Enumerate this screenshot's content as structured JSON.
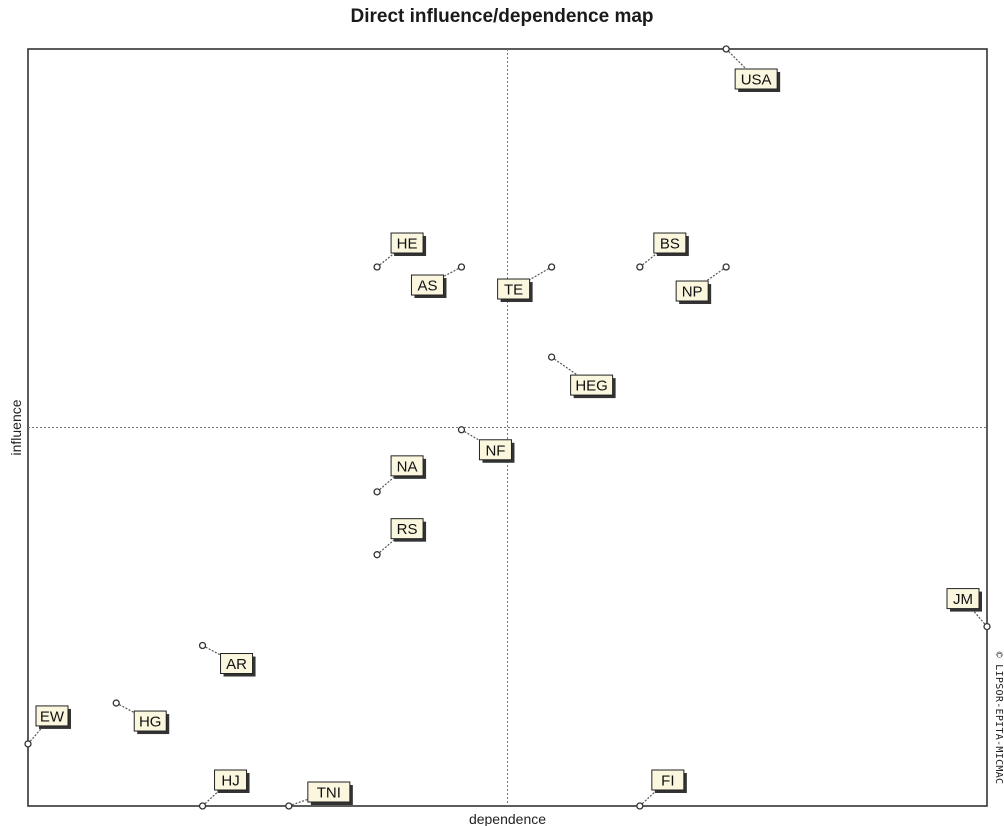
{
  "chart_data": {
    "type": "scatter",
    "title": "Direct influence/dependence map",
    "xlabel": "dependence",
    "ylabel": "influence",
    "copyright": "© LIPSOR-EPITA-MICMAC",
    "grid": false,
    "reference_lines": {
      "x": 0.5,
      "y": 0.5
    },
    "points": [
      {
        "label": "USA",
        "x": 0.728,
        "y": 1.0
      },
      {
        "label": "HE",
        "x": 0.364,
        "y": 0.712
      },
      {
        "label": "AS",
        "x": 0.452,
        "y": 0.712
      },
      {
        "label": "TE",
        "x": 0.546,
        "y": 0.712
      },
      {
        "label": "BS",
        "x": 0.638,
        "y": 0.712
      },
      {
        "label": "NP",
        "x": 0.728,
        "y": 0.712
      },
      {
        "label": "HEG",
        "x": 0.546,
        "y": 0.593
      },
      {
        "label": "NF",
        "x": 0.452,
        "y": 0.497
      },
      {
        "label": "NA",
        "x": 0.364,
        "y": 0.415
      },
      {
        "label": "RS",
        "x": 0.364,
        "y": 0.332
      },
      {
        "label": "JM",
        "x": 1.0,
        "y": 0.237
      },
      {
        "label": "AR",
        "x": 0.182,
        "y": 0.212
      },
      {
        "label": "HG",
        "x": 0.092,
        "y": 0.136
      },
      {
        "label": "EW",
        "x": 0.0,
        "y": 0.082
      },
      {
        "label": "HJ",
        "x": 0.182,
        "y": 0.0
      },
      {
        "label": "TNI",
        "x": 0.272,
        "y": 0.0
      },
      {
        "label": "FI",
        "x": 0.638,
        "y": 0.0
      }
    ]
  }
}
